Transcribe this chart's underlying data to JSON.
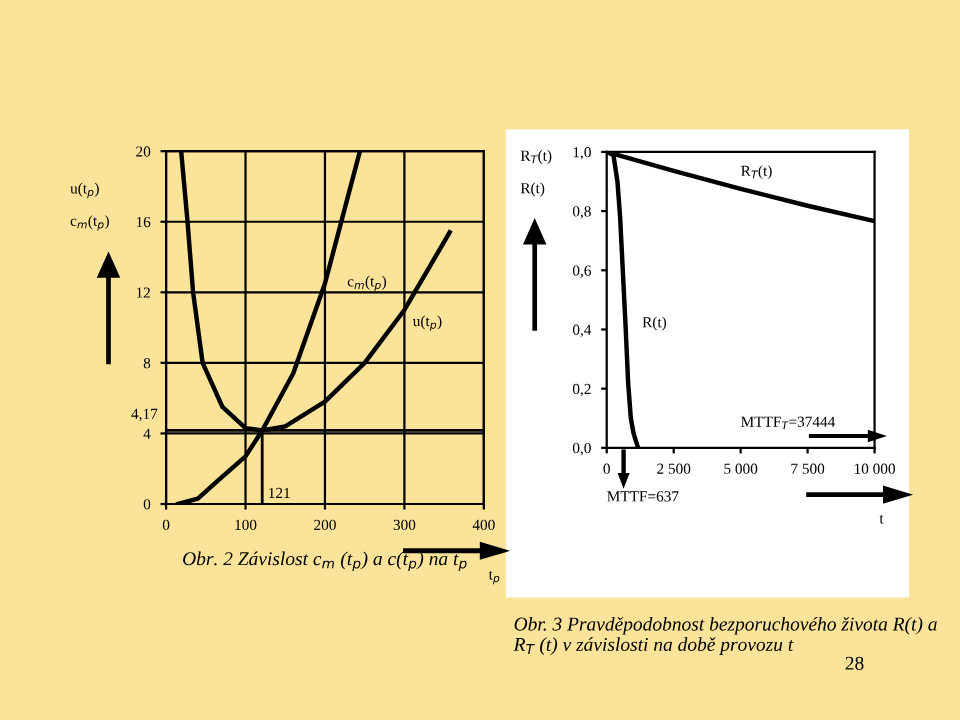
{
  "chart_data": [
    {
      "type": "line",
      "xlabel": "t$_{p}$",
      "ylabel": "u(t$_{p}$)\nc$_{m}$(t$_{p}$)",
      "title": "Obr. 2 Závislost c$_{m}$ (t$_{p}$) a c(t$_{p}$) na t$_{p}$",
      "xlim": [
        0,
        400
      ],
      "xticks": [
        0,
        100,
        200,
        300,
        400
      ],
      "ylim": [
        0,
        20
      ],
      "yticks": [
        0,
        4,
        8,
        12,
        16,
        20
      ],
      "grid": true,
      "marker": "none",
      "line_style": "solid",
      "series": [
        {
          "name": "u(t$_{p}$)",
          "color": "#000000",
          "x": [
            19,
            27,
            34,
            46,
            71,
            100,
            121,
            150,
            200,
            250,
            300,
            357
          ],
          "values": [
            20,
            16,
            12,
            8,
            5.5,
            4.3,
            4.17,
            4.4,
            5.8,
            8,
            11,
            15.4
          ]
        },
        {
          "name": "c$_{m}$(t$_{p}$)",
          "color": "#000000",
          "x": [
            15,
            40,
            67,
            100,
            121,
            160,
            200,
            244
          ],
          "values": [
            0,
            0.3,
            1.4,
            2.7,
            4.17,
            7.4,
            12.5,
            20
          ]
        }
      ],
      "ref_lines": [
        {
          "axis": "y",
          "value": 4.17,
          "label": "4,17",
          "color": "#000000"
        },
        {
          "axis": "x",
          "value": 121,
          "label": "121",
          "color": "#000000"
        }
      ]
    },
    {
      "type": "line",
      "xlabel": "t",
      "ylabel": "R$_{T}$(t)\nR(t)",
      "title": "Obr. 3 Pravděpodobnost bezporuchového života R(t) a R$_{T}$ (t) v závislosti na době provozu t",
      "xlim": [
        0,
        10000
      ],
      "xticks": [
        0,
        {
          "value": 2500,
          "label": "2 500"
        },
        {
          "value": 5000,
          "label": "5 000"
        },
        {
          "value": 7500,
          "label": "7 500"
        },
        {
          "value": 10000,
          "label": "10 000"
        }
      ],
      "ylim": [
        0,
        1
      ],
      "yticks": [
        {
          "value": 0,
          "label": "0,0"
        },
        {
          "value": 0.2,
          "label": "0,2"
        },
        {
          "value": 0.4,
          "label": "0,4"
        },
        {
          "value": 0.6,
          "label": "0,6"
        },
        {
          "value": 0.8,
          "label": "0,8"
        },
        {
          "value": 1,
          "label": "1,0"
        }
      ],
      "grid": false,
      "marker": "none",
      "line_style": "solid",
      "series": [
        {
          "name": "R$_{T}$(t)",
          "color": "#000000",
          "x": [
            0,
            2500,
            5000,
            7500,
            10000
          ],
          "values": [
            1,
            0.936,
            0.875,
            0.818,
            0.766
          ]
        },
        {
          "name": "R(t)",
          "color": "#000000",
          "x": [
            0,
            250,
            400,
            500,
            600,
            700,
            800,
            900,
            1000,
            1170
          ],
          "values": [
            1,
            0.99,
            0.9,
            0.78,
            0.6,
            0.42,
            0.22,
            0.1,
            0.05,
            0
          ]
        }
      ],
      "annotations": [
        "MTTF=637",
        "MTTF$_{T}$=37444",
        "28"
      ]
    }
  ]
}
